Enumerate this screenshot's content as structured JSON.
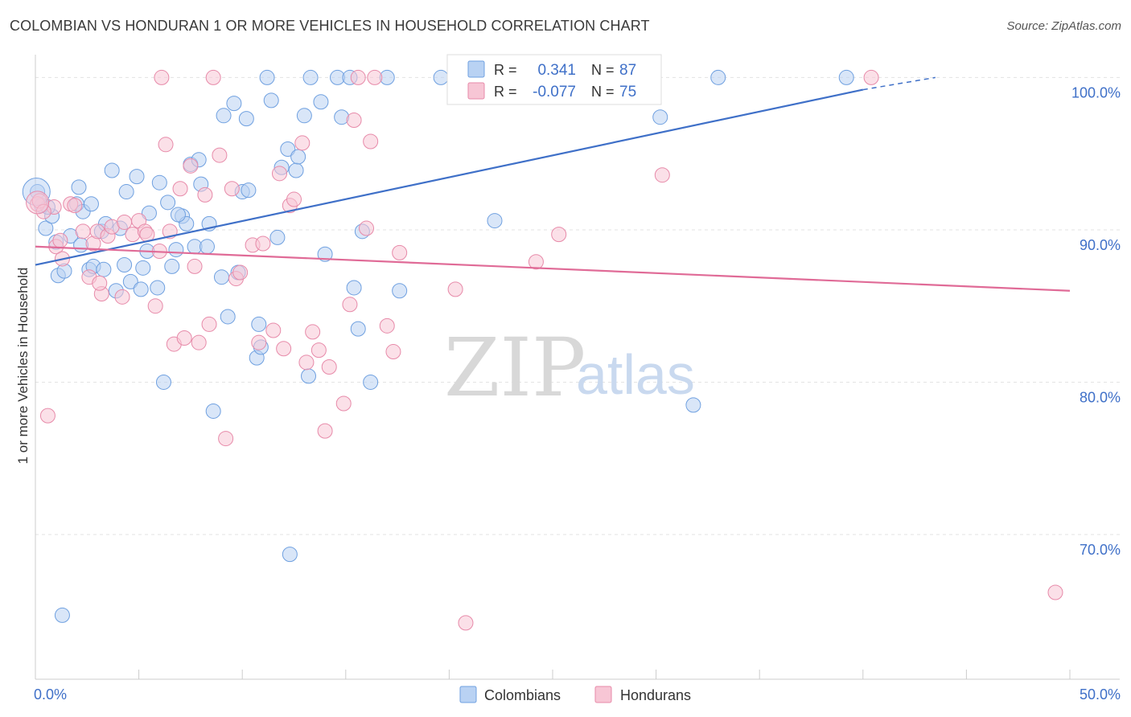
{
  "title": "COLOMBIAN VS HONDURAN 1 OR MORE VEHICLES IN HOUSEHOLD CORRELATION CHART",
  "source": "Source: ZipAtlas.com",
  "watermark": {
    "zip": "ZIP",
    "atlas": "atlas"
  },
  "legend": {
    "rows": [
      {
        "r_label": "R =",
        "r_value": "0.341",
        "n_label": "N =",
        "n_value": "87",
        "color": "#6fa0e0",
        "fill": "#b9d2f3"
      },
      {
        "r_label": "R =",
        "r_value": "-0.077",
        "n_label": "N =",
        "n_value": "75",
        "color": "#e78aa9",
        "fill": "#f7c6d5"
      }
    ]
  },
  "bottom_legend": [
    {
      "label": "Colombians",
      "color": "#6fa0e0",
      "fill": "#b9d2f3"
    },
    {
      "label": "Hondurans",
      "color": "#e78aa9",
      "fill": "#f7c6d5"
    }
  ],
  "chart_data": {
    "type": "scatter",
    "title": "COLOMBIAN VS HONDURAN 1 OR MORE VEHICLES IN HOUSEHOLD CORRELATION CHART",
    "xlabel": "",
    "ylabel": "1 or more Vehicles in Household",
    "xlim": [
      0,
      50
    ],
    "ylim": [
      60.5,
      101.5
    ],
    "x_tick_labels": [
      "0.0%",
      "50.0%"
    ],
    "y_ticks": [
      100,
      90,
      80,
      70
    ],
    "y_tick_labels": [
      "100.0%",
      "90.0%",
      "80.0%",
      "70.0%"
    ],
    "grid": true,
    "legend_position": "top-center",
    "series": [
      {
        "name": "Colombians",
        "color": "#3f70c8",
        "stroke": "#6fa0e0",
        "fill": "#b9d2f3",
        "trend": {
          "x": [
            0,
            40
          ],
          "y": [
            87.7,
            99.2
          ],
          "dashed_to": [
            43.5,
            100.0
          ]
        },
        "points": [
          [
            0.1,
            92.5
          ],
          [
            0.3,
            91.6
          ],
          [
            0.5,
            90.1
          ],
          [
            0.8,
            90.9
          ],
          [
            1.0,
            89.2
          ],
          [
            1.1,
            87.0
          ],
          [
            1.4,
            87.3
          ],
          [
            1.7,
            89.6
          ],
          [
            2.0,
            91.7
          ],
          [
            2.1,
            92.8
          ],
          [
            2.3,
            91.2
          ],
          [
            2.6,
            87.4
          ],
          [
            2.7,
            91.7
          ],
          [
            2.8,
            87.6
          ],
          [
            3.2,
            89.9
          ],
          [
            3.3,
            87.4
          ],
          [
            3.4,
            90.4
          ],
          [
            3.7,
            93.9
          ],
          [
            3.9,
            86.0
          ],
          [
            4.1,
            90.1
          ],
          [
            4.3,
            87.7
          ],
          [
            4.4,
            92.5
          ],
          [
            4.6,
            86.6
          ],
          [
            4.9,
            93.5
          ],
          [
            5.1,
            86.1
          ],
          [
            5.2,
            87.5
          ],
          [
            5.4,
            88.6
          ],
          [
            5.5,
            91.1
          ],
          [
            5.9,
            86.2
          ],
          [
            6.0,
            93.1
          ],
          [
            6.2,
            80.0
          ],
          [
            6.4,
            91.8
          ],
          [
            6.6,
            87.6
          ],
          [
            6.8,
            88.7
          ],
          [
            7.1,
            90.9
          ],
          [
            7.3,
            90.4
          ],
          [
            7.5,
            94.3
          ],
          [
            7.7,
            88.9
          ],
          [
            7.9,
            94.6
          ],
          [
            8.0,
            93.0
          ],
          [
            8.3,
            88.9
          ],
          [
            8.4,
            90.4
          ],
          [
            8.6,
            78.1
          ],
          [
            9.0,
            86.9
          ],
          [
            9.1,
            97.5
          ],
          [
            9.3,
            84.3
          ],
          [
            9.6,
            98.3
          ],
          [
            9.8,
            87.2
          ],
          [
            10.0,
            92.5
          ],
          [
            10.2,
            97.3
          ],
          [
            10.7,
            81.6
          ],
          [
            10.8,
            83.8
          ],
          [
            10.9,
            82.3
          ],
          [
            11.2,
            100.0
          ],
          [
            11.4,
            98.5
          ],
          [
            11.7,
            89.5
          ],
          [
            11.9,
            94.1
          ],
          [
            12.2,
            95.3
          ],
          [
            12.3,
            68.7
          ],
          [
            12.6,
            93.9
          ],
          [
            12.7,
            94.8
          ],
          [
            13.0,
            97.5
          ],
          [
            13.2,
            80.4
          ],
          [
            13.3,
            100.0
          ],
          [
            13.8,
            98.4
          ],
          [
            14.0,
            88.4
          ],
          [
            14.6,
            100.0
          ],
          [
            14.8,
            97.4
          ],
          [
            15.2,
            100.0
          ],
          [
            15.4,
            86.2
          ],
          [
            15.6,
            83.5
          ],
          [
            15.8,
            89.9
          ],
          [
            16.2,
            80.0
          ],
          [
            17.0,
            100.0
          ],
          [
            17.6,
            86.0
          ],
          [
            19.6,
            100.0
          ],
          [
            22.2,
            90.6
          ],
          [
            26.6,
            100.0
          ],
          [
            30.2,
            97.4
          ],
          [
            31.8,
            78.5
          ],
          [
            33.0,
            100.0
          ],
          [
            39.2,
            100.0
          ],
          [
            1.3,
            64.7
          ],
          [
            0.6,
            91.5
          ],
          [
            2.2,
            89.0
          ],
          [
            6.9,
            91.0
          ],
          [
            10.3,
            92.6
          ]
        ]
      },
      {
        "name": "Hondurans",
        "color": "#e06b97",
        "stroke": "#e78aa9",
        "fill": "#f7c6d5",
        "trend": {
          "x": [
            0,
            50
          ],
          "y": [
            88.9,
            86.0
          ]
        },
        "points": [
          [
            0.1,
            91.7
          ],
          [
            0.2,
            91.9
          ],
          [
            0.6,
            77.8
          ],
          [
            0.9,
            91.5
          ],
          [
            1.0,
            88.9
          ],
          [
            1.2,
            89.3
          ],
          [
            1.3,
            88.1
          ],
          [
            1.7,
            91.7
          ],
          [
            1.9,
            91.6
          ],
          [
            2.3,
            89.9
          ],
          [
            2.6,
            86.9
          ],
          [
            2.8,
            89.1
          ],
          [
            3.0,
            89.9
          ],
          [
            3.2,
            85.8
          ],
          [
            3.5,
            89.6
          ],
          [
            3.7,
            90.2
          ],
          [
            4.2,
            85.6
          ],
          [
            4.3,
            90.5
          ],
          [
            4.7,
            89.7
          ],
          [
            5.0,
            90.6
          ],
          [
            5.3,
            89.9
          ],
          [
            5.4,
            89.7
          ],
          [
            5.8,
            85.0
          ],
          [
            6.0,
            88.6
          ],
          [
            6.3,
            95.6
          ],
          [
            6.5,
            89.9
          ],
          [
            6.7,
            82.5
          ],
          [
            7.0,
            92.7
          ],
          [
            7.2,
            82.9
          ],
          [
            7.5,
            94.2
          ],
          [
            7.7,
            87.6
          ],
          [
            7.9,
            82.6
          ],
          [
            8.2,
            92.3
          ],
          [
            8.4,
            83.8
          ],
          [
            8.6,
            100.0
          ],
          [
            8.9,
            94.9
          ],
          [
            9.2,
            76.3
          ],
          [
            9.5,
            92.7
          ],
          [
            9.7,
            86.8
          ],
          [
            9.9,
            87.2
          ],
          [
            10.5,
            89.0
          ],
          [
            10.8,
            82.6
          ],
          [
            11.0,
            89.1
          ],
          [
            11.5,
            83.4
          ],
          [
            11.8,
            93.7
          ],
          [
            12.0,
            82.2
          ],
          [
            12.3,
            91.6
          ],
          [
            12.5,
            92.0
          ],
          [
            12.9,
            95.7
          ],
          [
            13.1,
            81.3
          ],
          [
            13.4,
            83.3
          ],
          [
            13.7,
            82.1
          ],
          [
            14.0,
            76.8
          ],
          [
            14.2,
            81.0
          ],
          [
            14.9,
            78.6
          ],
          [
            15.2,
            85.1
          ],
          [
            15.4,
            97.2
          ],
          [
            15.6,
            100.0
          ],
          [
            16.0,
            90.1
          ],
          [
            16.2,
            95.8
          ],
          [
            17.0,
            83.7
          ],
          [
            17.3,
            82.0
          ],
          [
            17.6,
            88.5
          ],
          [
            20.3,
            86.1
          ],
          [
            20.8,
            64.2
          ],
          [
            24.2,
            87.9
          ],
          [
            25.3,
            89.7
          ],
          [
            28.2,
            100.0
          ],
          [
            30.3,
            93.6
          ],
          [
            40.4,
            100.0
          ],
          [
            49.3,
            66.2
          ],
          [
            0.4,
            91.2
          ],
          [
            3.1,
            86.5
          ],
          [
            16.4,
            100.0
          ],
          [
            6.1,
            100.0
          ]
        ]
      }
    ]
  }
}
